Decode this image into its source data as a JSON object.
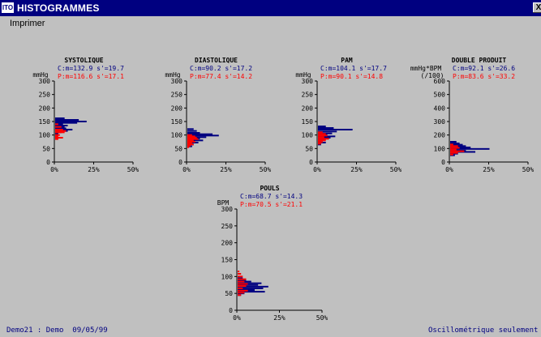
{
  "window": {
    "title": "HISTOGRAMMES",
    "icon_text": "ITO",
    "close_label": "X"
  },
  "menu": {
    "items": [
      "Imprimer"
    ]
  },
  "footer": {
    "left": "Demo21 : Demo  09/05/99",
    "right": "Oscillométrique seulement"
  },
  "colors": {
    "window_bg": "#c0c0c0",
    "title_bar": "#000080",
    "series_c": "#000080",
    "series_p": "#ff0000"
  },
  "chart_data": [
    {
      "type": "histogram",
      "title": "SYSTOLIQUE",
      "ylabel": "mmHg",
      "ylabel2": "",
      "stats_c": "C:m=132.9 s'=19.7",
      "stats_p": "P:m=116.6 s'=17.1",
      "ylim": [
        0,
        300
      ],
      "yticks": [
        "0",
        "50",
        "100",
        "150",
        "200",
        "250",
        "300"
      ],
      "xticks": [
        "0%",
        "25%",
        "50%"
      ],
      "xlim": [
        0,
        50
      ],
      "series": [
        {
          "name": "C",
          "y": [
            162,
            156,
            150,
            145,
            140,
            135,
            130,
            125,
            120,
            115,
            110,
            105
          ],
          "x": [
            6,
            15,
            20,
            14,
            5,
            8,
            6,
            7,
            11,
            8,
            4,
            2
          ]
        },
        {
          "name": "P",
          "y": [
            140,
            130,
            120,
            115,
            110,
            100,
            95,
            90,
            85
          ],
          "x": [
            2,
            4,
            5,
            7,
            6,
            3,
            2,
            5,
            2
          ]
        }
      ]
    },
    {
      "type": "histogram",
      "title": "DIASTOLIQUE",
      "ylabel": "mmHg",
      "ylabel2": "",
      "stats_c": "C:m=90.2 s'=17.2",
      "stats_p": "P:m=77.4 s'=14.2",
      "ylim": [
        0,
        300
      ],
      "yticks": [
        "0",
        "50",
        "100",
        "150",
        "200",
        "250",
        "300"
      ],
      "xticks": [
        "0%",
        "25%",
        "50%"
      ],
      "xlim": [
        0,
        50
      ],
      "series": [
        {
          "name": "C",
          "y": [
            122,
            115,
            108,
            103,
            98,
            92,
            87,
            80,
            72,
            65,
            58
          ],
          "x": [
            4,
            6,
            8,
            16,
            20,
            12,
            8,
            10,
            7,
            4,
            3
          ]
        },
        {
          "name": "P",
          "y": [
            100,
            95,
            90,
            85,
            80,
            75,
            70,
            65,
            60,
            55
          ],
          "x": [
            3,
            5,
            6,
            7,
            4,
            5,
            3,
            4,
            2,
            1
          ]
        }
      ]
    },
    {
      "type": "histogram",
      "title": "PAM",
      "ylabel": "mmHg",
      "ylabel2": "",
      "stats_c": "C:m=104.1 s'=17.7",
      "stats_p": "P:m=90.1 s'=14.8",
      "ylim": [
        0,
        300
      ],
      "yticks": [
        "0",
        "50",
        "100",
        "150",
        "200",
        "250",
        "300"
      ],
      "xticks": [
        "0%",
        "25%",
        "50%"
      ],
      "xlim": [
        0,
        50
      ],
      "series": [
        {
          "name": "C",
          "y": [
            132,
            126,
            120,
            113,
            106,
            100,
            95,
            90,
            85,
            78,
            72,
            65
          ],
          "x": [
            5,
            10,
            22,
            12,
            9,
            6,
            11,
            8,
            5,
            3,
            5,
            2
          ]
        },
        {
          "name": "P",
          "y": [
            110,
            104,
            98,
            92,
            86,
            80,
            74,
            68
          ],
          "x": [
            3,
            5,
            6,
            4,
            7,
            5,
            3,
            2
          ]
        }
      ]
    },
    {
      "type": "histogram",
      "title": "DOUBLE PRODUIT",
      "ylabel": "mmHg*BPM",
      "ylabel2": "(/100)",
      "stats_c": "C:m=92.1 s'=26.6",
      "stats_p": "P:m=83.6 s'=33.2",
      "ylim": [
        0,
        600
      ],
      "yticks": [
        "0",
        "100",
        "200",
        "300",
        "400",
        "500",
        "600"
      ],
      "xticks": [
        "0%",
        "25%",
        "50%"
      ],
      "xlim": [
        0,
        50
      ],
      "series": [
        {
          "name": "C",
          "y": [
            150,
            138,
            128,
            118,
            108,
            97,
            85,
            75,
            62,
            50
          ],
          "x": [
            4,
            6,
            8,
            10,
            13,
            25,
            10,
            16,
            5,
            3
          ]
        },
        {
          "name": "P",
          "y": [
            130,
            118,
            105,
            92,
            80,
            68,
            55
          ],
          "x": [
            2,
            5,
            6,
            4,
            9,
            5,
            2
          ]
        }
      ]
    },
    {
      "type": "histogram",
      "title": "POULS",
      "ylabel": "BPM",
      "ylabel2": "",
      "stats_c": "C:m=68.7 s'=14.3",
      "stats_p": "P:m=70.5 s'=21.1",
      "ylim": [
        0,
        300
      ],
      "yticks": [
        "0",
        "50",
        "100",
        "150",
        "200",
        "250",
        "300"
      ],
      "xticks": [
        "0%",
        "25%",
        "50%"
      ],
      "xlim": [
        0,
        50
      ],
      "series": [
        {
          "name": "C",
          "y": [
            95,
            90,
            85,
            80,
            75,
            70,
            65,
            60,
            55,
            50,
            45
          ],
          "x": [
            3,
            5,
            8,
            14,
            12,
            18,
            15,
            10,
            16,
            4,
            2
          ]
        },
        {
          "name": "P",
          "y": [
            115,
            108,
            100,
            92,
            85,
            78,
            72,
            65,
            58,
            52,
            45
          ],
          "x": [
            1,
            2,
            3,
            5,
            4,
            6,
            5,
            3,
            6,
            4,
            2
          ]
        }
      ]
    }
  ]
}
